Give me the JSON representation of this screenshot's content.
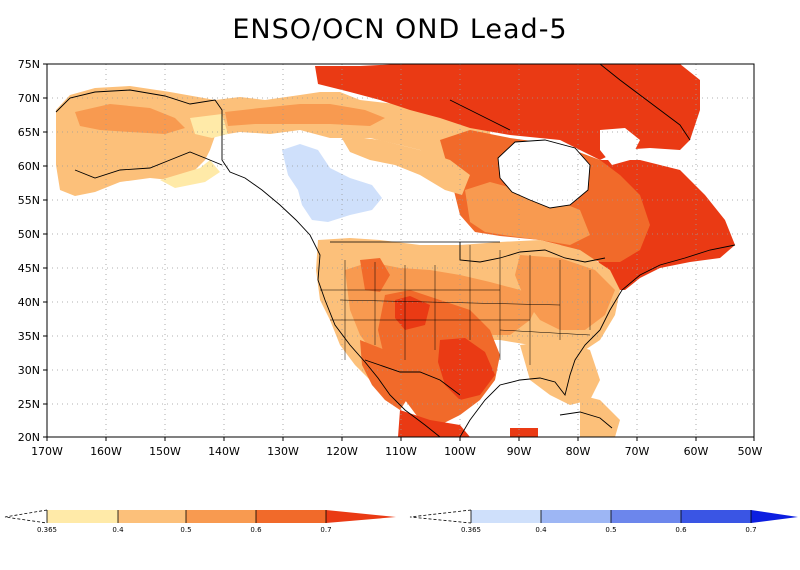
{
  "title": "ENSO/OCN OND Lead-5",
  "map": {
    "lon_range": [
      -170,
      -50
    ],
    "lat_range": [
      20,
      75
    ],
    "lat_ticks": [
      "75N",
      "70N",
      "65N",
      "60N",
      "55N",
      "50N",
      "45N",
      "40N",
      "35N",
      "30N",
      "25N",
      "20N"
    ],
    "lon_ticks": [
      "170W",
      "160W",
      "150W",
      "140W",
      "130W",
      "120W",
      "110W",
      "100W",
      "90W",
      "80W",
      "70W",
      "60W",
      "50W"
    ]
  },
  "colors": {
    "above": [
      "#ffeaa8",
      "#fcc07a",
      "#f89a50",
      "#f16a2a",
      "#ea3a14"
    ],
    "below": [
      "#cfe0fb",
      "#9db6f4",
      "#6c86ec",
      "#3a55e4",
      "#0c1ee0"
    ],
    "coast": "#000000",
    "grid": "#999999"
  },
  "legend": {
    "above": {
      "labels": [
        "0.365",
        "0.4",
        "0.5",
        "0.6",
        "0.7"
      ]
    },
    "below": {
      "labels": [
        "0.365",
        "0.4",
        "0.5",
        "0.6",
        "0.7"
      ]
    }
  }
}
